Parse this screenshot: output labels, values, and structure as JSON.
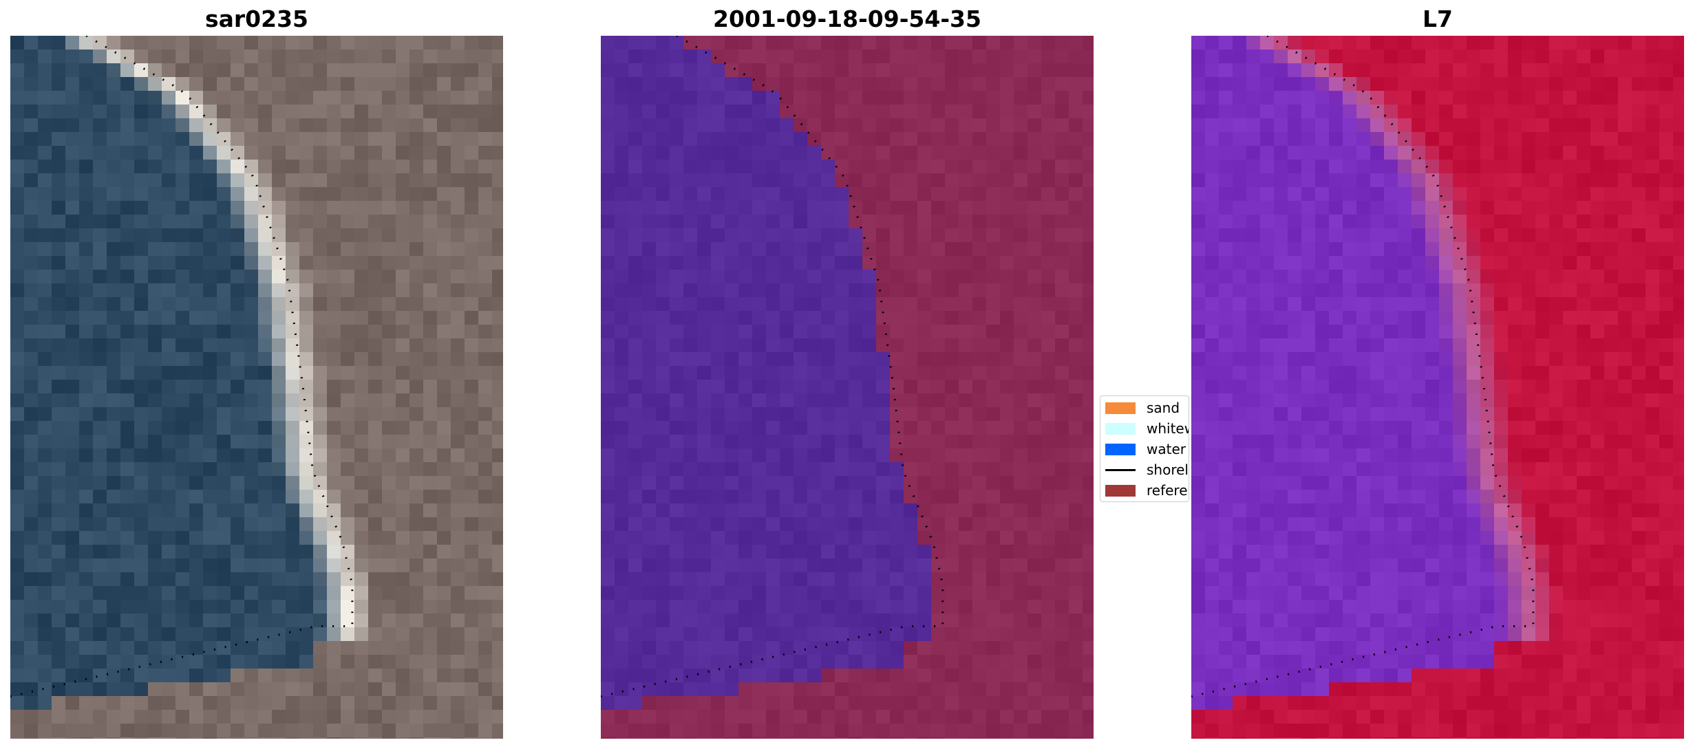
{
  "panels": [
    {
      "title": "sar0235",
      "style": "rgb"
    },
    {
      "title": "2001-09-18-09-54-35",
      "style": "classified"
    },
    {
      "title": "L7",
      "style": "index"
    }
  ],
  "legend": {
    "items": [
      {
        "label": "sand",
        "color": "#f58b3a",
        "kind": "swatch"
      },
      {
        "label": "whitewater",
        "color": "#ccffff",
        "kind": "swatch"
      },
      {
        "label": "water",
        "color": "#0064ff",
        "kind": "swatch"
      },
      {
        "label": "shoreline",
        "color": "#000000",
        "kind": "line"
      },
      {
        "label": "reference",
        "color": "#a03838",
        "kind": "swatch"
      }
    ]
  },
  "colors": {
    "rgb_water": "#2e4a62",
    "rgb_land": "#7a6a66",
    "rgb_sand": "#e6e2da",
    "class_water": "#552a99",
    "class_land": "#8a2a55",
    "class_whitewater": "#b07aa8",
    "index_water": "#7a2ebf",
    "index_land": "#c4123e",
    "index_edge": "#c0609a"
  }
}
